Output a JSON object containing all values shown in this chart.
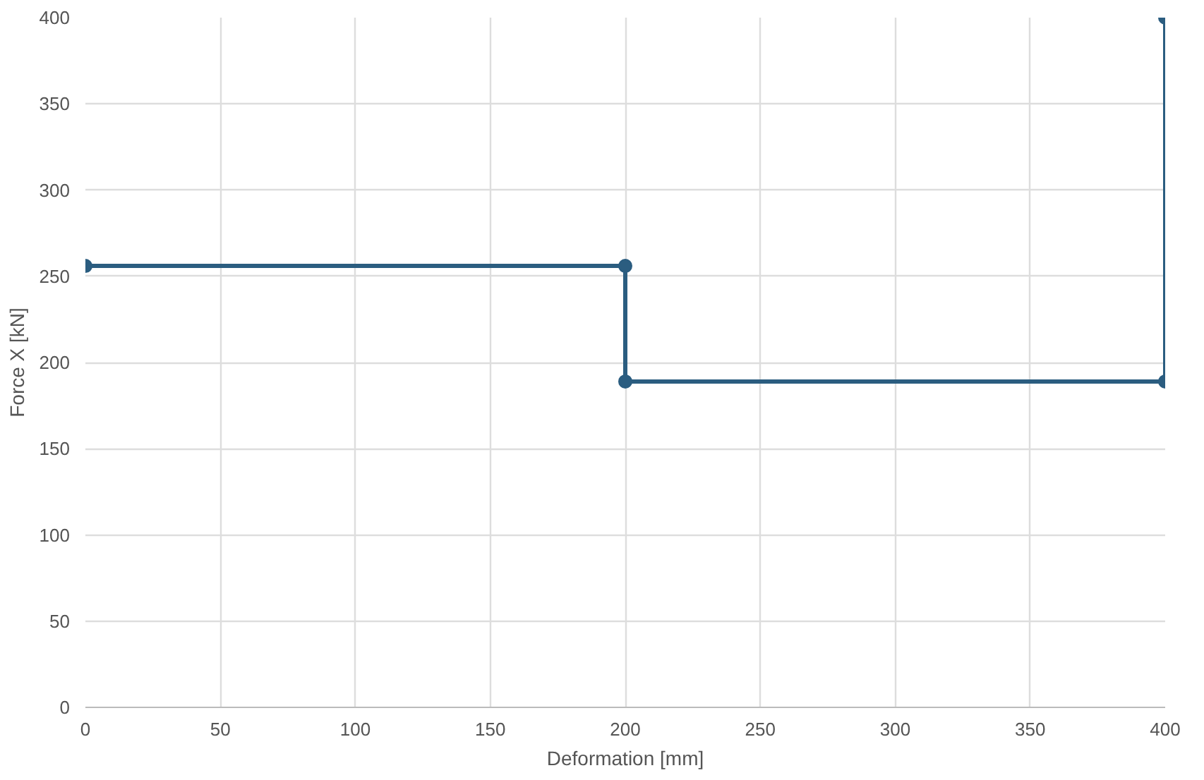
{
  "chart_data": {
    "type": "line",
    "xlabel": "Deformation [mm]",
    "ylabel": "Force X [kN]",
    "x": [
      0,
      200,
      200,
      400,
      400
    ],
    "series": [
      {
        "color": "#2b5d80",
        "values": [
          256,
          256,
          189,
          189,
          400
        ]
      }
    ],
    "xlim": [
      0,
      400
    ],
    "ylim": [
      0,
      400
    ],
    "xticks": [
      0,
      50,
      100,
      150,
      200,
      250,
      300,
      350,
      400
    ],
    "yticks": [
      0,
      50,
      100,
      150,
      200,
      250,
      300,
      350,
      400
    ],
    "grid": true,
    "marker": "circle",
    "line_style": "solid"
  }
}
